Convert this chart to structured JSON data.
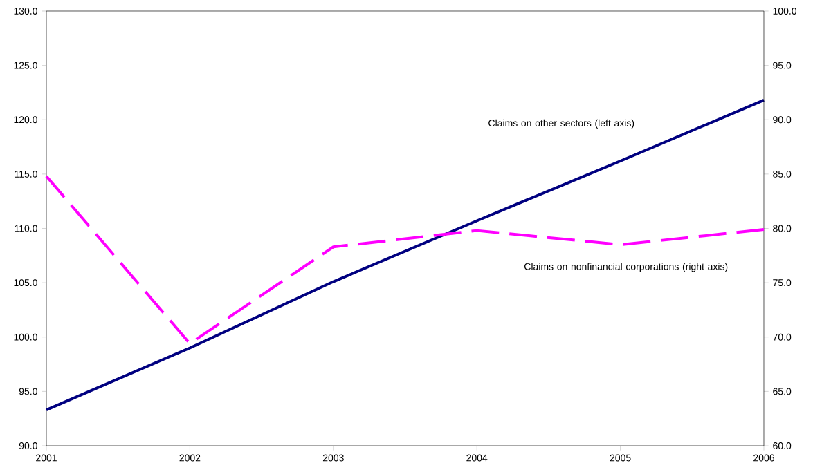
{
  "chart_data": {
    "type": "line",
    "x": [
      2001,
      2002,
      2003,
      2004,
      2005,
      2006
    ],
    "xlim": [
      2001,
      2006
    ],
    "xticks": [
      2001,
      2002,
      2003,
      2004,
      2005,
      2006
    ],
    "ylim": [
      90,
      130
    ],
    "yticks": [
      {
        "value": 90,
        "label": "90.0"
      },
      {
        "value": 95,
        "label": "95.0"
      },
      {
        "value": 100,
        "label": "100.0"
      },
      {
        "value": 105,
        "label": "105.0"
      },
      {
        "value": 110,
        "label": "110.0"
      },
      {
        "value": 115,
        "label": "115.0"
      },
      {
        "value": 120,
        "label": "120.0"
      },
      {
        "value": 125,
        "label": "125.0"
      },
      {
        "value": 130,
        "label": "130.0"
      }
    ],
    "y2lim": [
      60,
      100
    ],
    "y2ticks": [
      {
        "value": 60,
        "label": "60.0"
      },
      {
        "value": 65,
        "label": "65.0"
      },
      {
        "value": 70,
        "label": "70.0"
      },
      {
        "value": 75,
        "label": "75.0"
      },
      {
        "value": 80,
        "label": "80.0"
      },
      {
        "value": 85,
        "label": "85.0"
      },
      {
        "value": 90,
        "label": "90.0"
      },
      {
        "value": 95,
        "label": "95.0"
      },
      {
        "value": 100,
        "label": "100.0"
      }
    ],
    "series": [
      {
        "name": "Claims on other sectors (left axis)",
        "color": "#000080",
        "values": [
          93.3,
          99.0,
          105.1,
          110.7,
          116.2,
          121.8
        ],
        "line_style": "solid"
      },
      {
        "name": "Claims on nonfinancial corporations (right axis)",
        "color": "#ff00ff",
        "values": [
          84.8,
          69.4,
          78.3,
          79.8,
          78.5,
          79.9
        ],
        "axis": "y2",
        "line_style": "dashed"
      }
    ],
    "marker": "none",
    "grid": false,
    "legend": false
  }
}
